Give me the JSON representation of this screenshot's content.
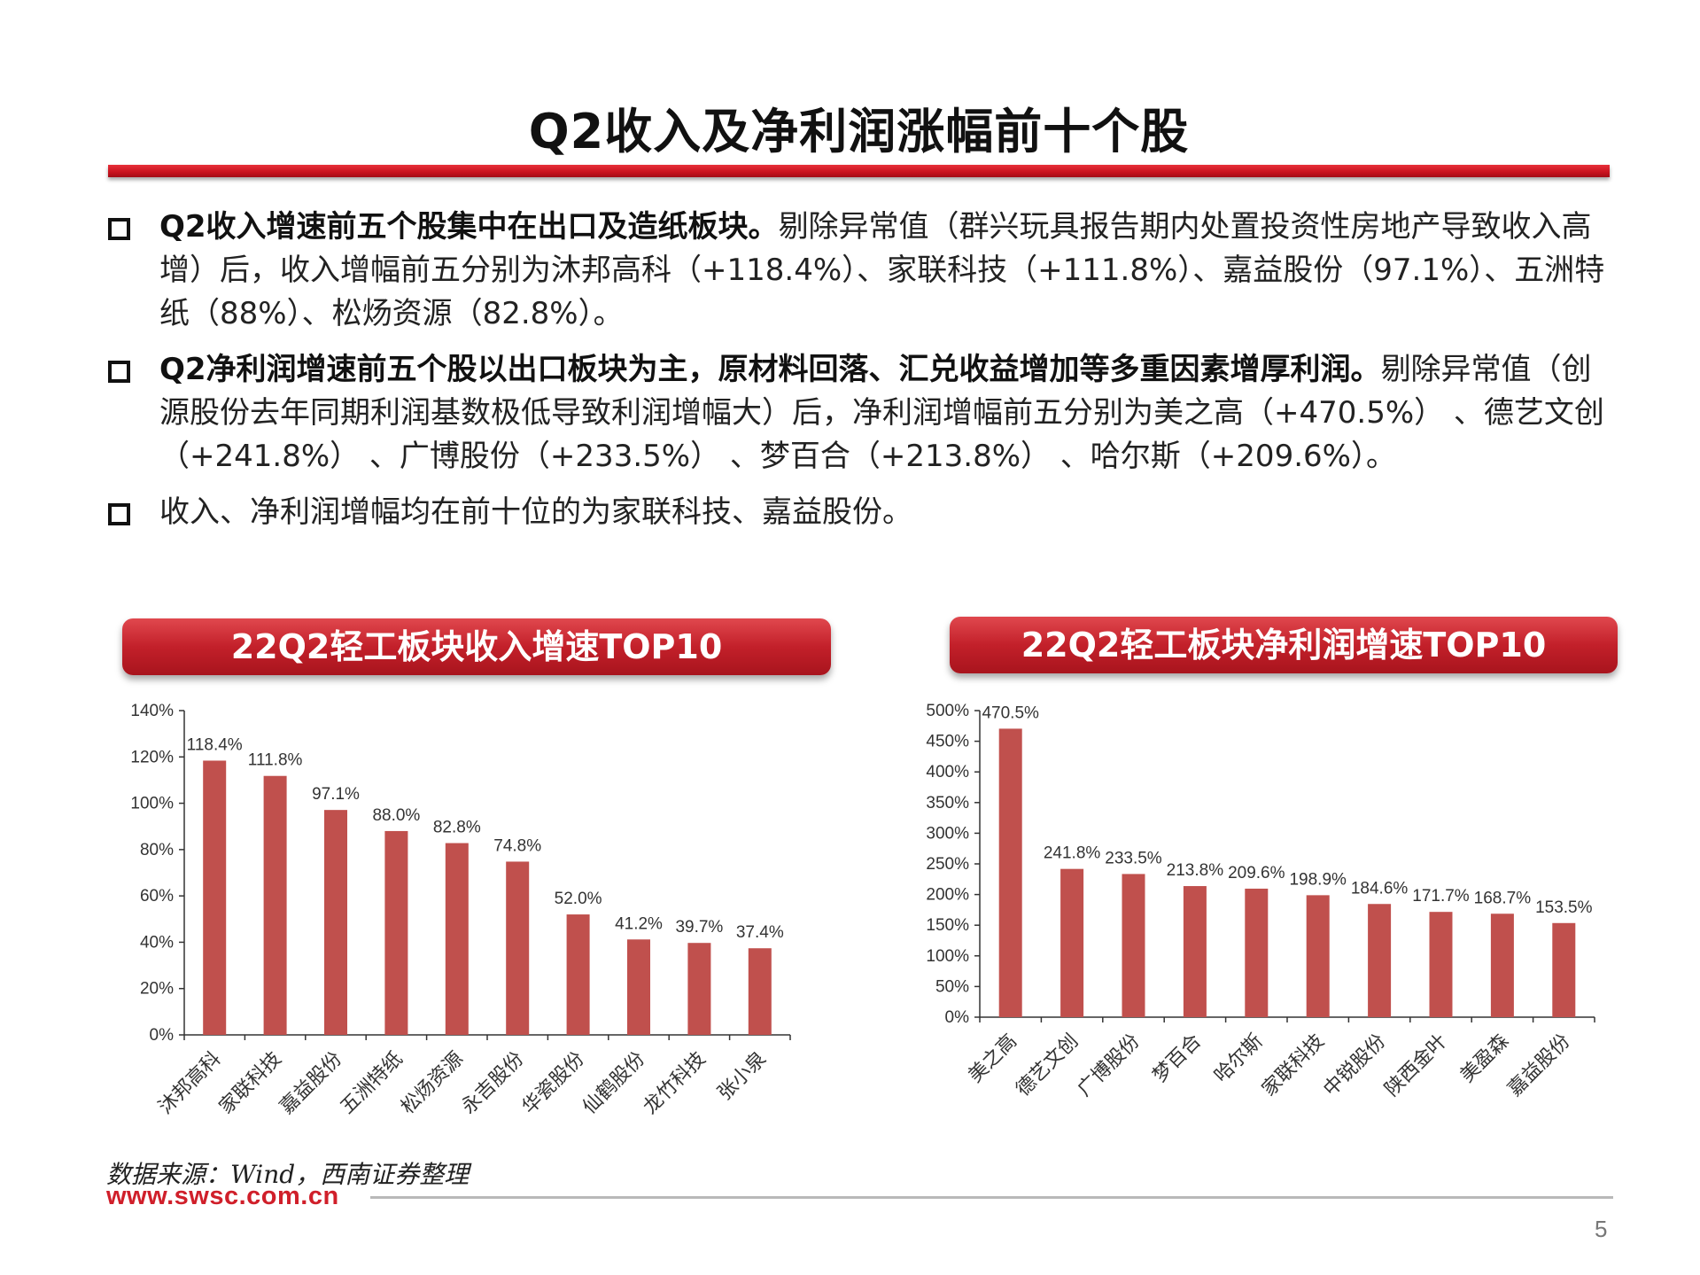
{
  "title": "Q2收入及净利润涨幅前十个股",
  "bullets": [
    {
      "bold": "Q2收入增速前五个股集中在出口及造纸板块。",
      "text": "剔除异常值（群兴玩具报告期内处置投资性房地产导致收入高增）后，收入增幅前五分别为沐邦高科（+118.4%）、家联科技（+111.8%）、嘉益股份（97.1%）、五洲特纸（88%）、松炀资源（82.8%）。"
    },
    {
      "bold": "Q2净利润增速前五个股以出口板块为主，原材料回落、汇兑收益增加等多重因素增厚利润。",
      "text": "剔除异常值（创源股份去年同期利润基数极低导致利润增幅大）后，净利润增幅前五分别为美之高（+470.5%） 、德艺文创（+241.8%） 、广博股份（+233.5%） 、梦百合（+213.8%） 、哈尔斯（+209.6%）。"
    },
    {
      "bold": "",
      "text": "收入、净利润增幅均在前十位的为家联科技、嘉益股份。"
    }
  ],
  "chart_data": [
    {
      "type": "bar",
      "title": "22Q2轻工板块收入增速TOP10",
      "categories": [
        "沐邦高科",
        "家联科技",
        "嘉益股份",
        "五洲特纸",
        "松炀资源",
        "永吉股份",
        "华瓷股份",
        "仙鹤股份",
        "龙竹科技",
        "张小泉"
      ],
      "values": [
        118.4,
        111.8,
        97.1,
        88.0,
        82.8,
        74.8,
        52.0,
        41.2,
        39.7,
        37.4
      ],
      "data_labels": [
        "118.4%",
        "111.8%",
        "97.1%",
        "88.0%",
        "82.8%",
        "74.8%",
        "52.0%",
        "41.2%",
        "39.7%",
        "37.4%"
      ],
      "yticks": [
        "0%",
        "20%",
        "40%",
        "60%",
        "80%",
        "100%",
        "120%",
        "140%"
      ],
      "ylim": [
        0,
        140
      ],
      "color": "#c0504d",
      "grid": false
    },
    {
      "type": "bar",
      "title": "22Q2轻工板块净利润增速TOP10",
      "categories": [
        "美之高",
        "德艺文创",
        "广博股份",
        "梦百合",
        "哈尔斯",
        "家联科技",
        "中锐股份",
        "陕西金叶",
        "美盈森",
        "嘉益股份"
      ],
      "values": [
        470.5,
        241.8,
        233.5,
        213.8,
        209.6,
        198.9,
        184.6,
        171.7,
        168.7,
        153.5
      ],
      "data_labels": [
        "470.5%",
        "241.8%",
        "233.5%",
        "213.8%",
        "209.6%",
        "198.9%",
        "184.6%",
        "171.7%",
        "168.7%",
        "153.5%"
      ],
      "yticks": [
        "0%",
        "50%",
        "100%",
        "150%",
        "200%",
        "250%",
        "300%",
        "350%",
        "400%",
        "450%",
        "500%"
      ],
      "ylim": [
        0,
        500
      ],
      "color": "#c0504d",
      "grid": false
    }
  ],
  "source": "数据来源：Wind，西南证券整理",
  "url": "www.swsc.com.cn",
  "page_number": "5"
}
